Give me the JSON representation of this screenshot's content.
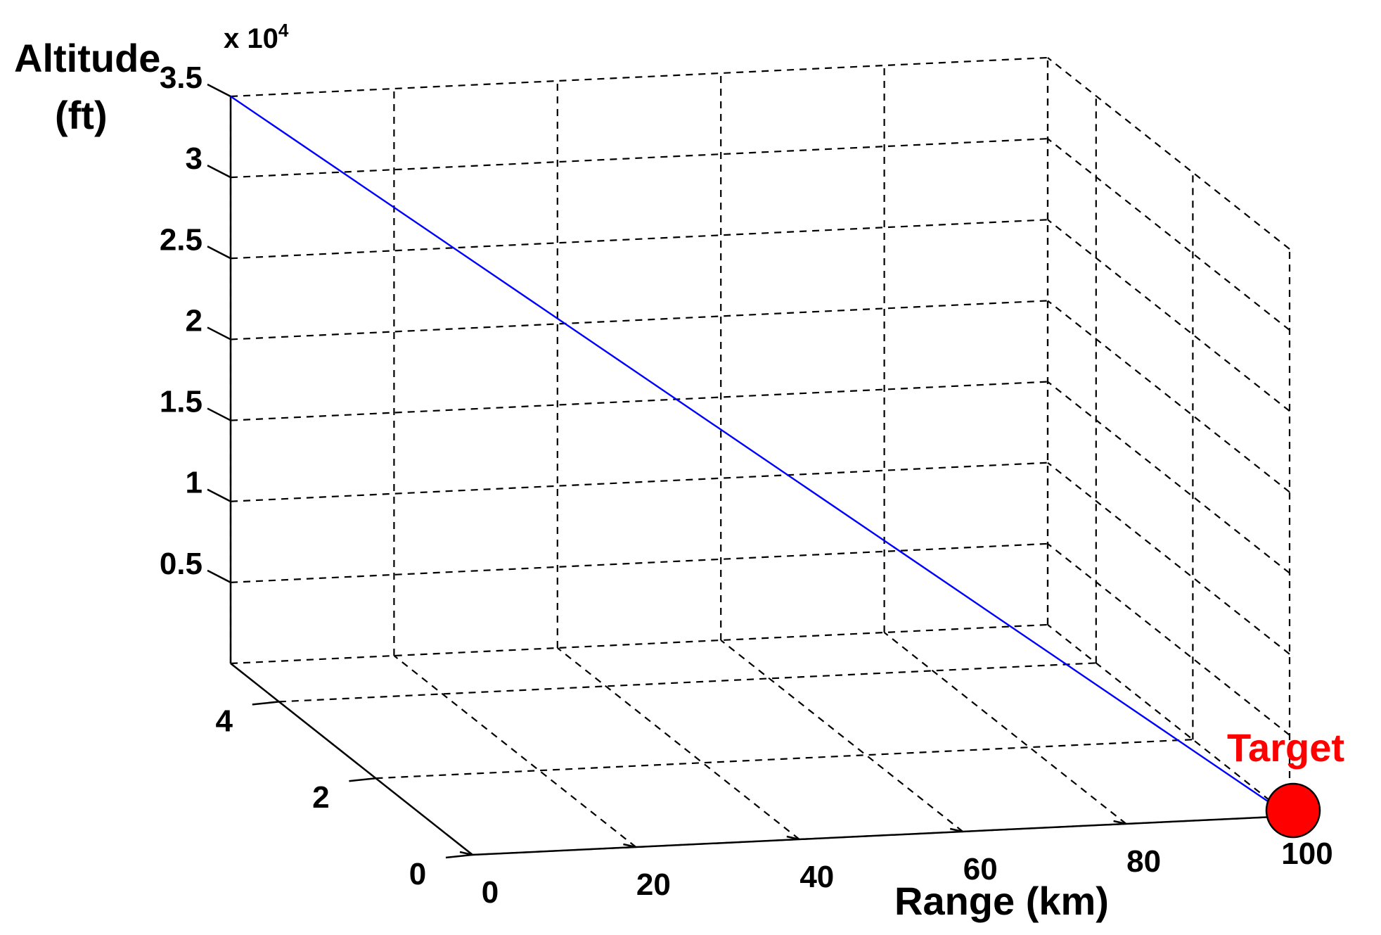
{
  "chart_data": {
    "type": "line3d",
    "multiplier_label": "x 10",
    "multiplier_exp": "4",
    "zlabel_lines": [
      "Altitude",
      "(ft)"
    ],
    "xlabel": "Range (km)",
    "x_ticks": [
      "0",
      "20",
      "40",
      "60",
      "80",
      "100"
    ],
    "x_tick_values": [
      0,
      20,
      40,
      60,
      80,
      100
    ],
    "y_ticks": [
      "0",
      "2",
      "4"
    ],
    "y_tick_values": [
      0,
      2,
      4
    ],
    "z_ticks": [
      "0.5",
      "1",
      "1.5",
      "2",
      "2.5",
      "3",
      "3.5"
    ],
    "z_tick_values": [
      0.5,
      1,
      1.5,
      2,
      2.5,
      3,
      3.5
    ],
    "xlim": [
      0,
      100
    ],
    "ylim": [
      0,
      5
    ],
    "zlim": [
      0,
      3.5
    ],
    "grid": true,
    "series": [
      {
        "color": "#0000ff",
        "points": [
          {
            "x": 0,
            "y": 5,
            "z": 3.5
          },
          {
            "x": 100,
            "y": 0,
            "z": 0
          }
        ]
      }
    ],
    "target": {
      "label": "Target",
      "x": 100,
      "y": 0,
      "z": 0,
      "color": "#ff0000"
    }
  }
}
